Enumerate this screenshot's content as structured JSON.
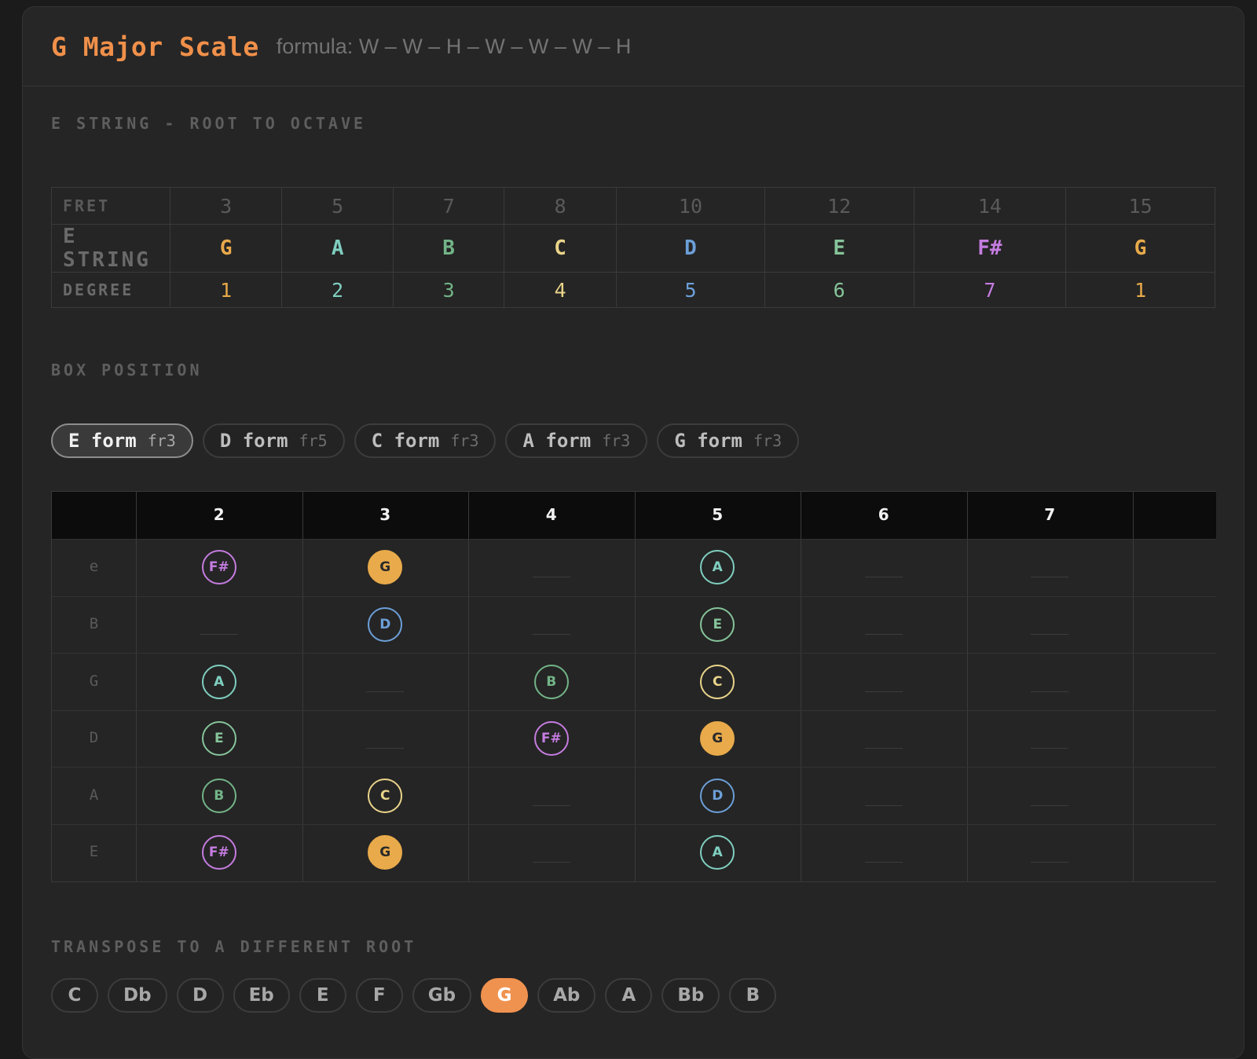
{
  "header": {
    "title": "G Major Scale",
    "formula": "formula: W – W – H – W – W – W – H"
  },
  "colors": {
    "root": "#e8aa4a",
    "second": "#7fcfc0",
    "third": "#72b487",
    "fourth": "#e9d48a",
    "fifth": "#6c9fd8",
    "sixth": "#86c49a",
    "seventh": "#c57ce0",
    "accent": "#f0924f"
  },
  "estring_section": {
    "label": "E STRING - ROOT TO OCTAVE",
    "row_labels": {
      "fret": "FRET",
      "note": "E STRING",
      "degree": "DEGREE"
    },
    "columns": [
      {
        "fret": "3",
        "note": "G",
        "degree": "1",
        "color": "#e8aa4a"
      },
      {
        "fret": "5",
        "note": "A",
        "degree": "2",
        "color": "#7fcfc0"
      },
      {
        "fret": "7",
        "note": "B",
        "degree": "3",
        "color": "#72b487"
      },
      {
        "fret": "8",
        "note": "C",
        "degree": "4",
        "color": "#e9d48a"
      },
      {
        "fret": "10",
        "note": "D",
        "degree": "5",
        "color": "#6c9fd8"
      },
      {
        "fret": "12",
        "note": "E",
        "degree": "6",
        "color": "#86c49a"
      },
      {
        "fret": "14",
        "note": "F#",
        "degree": "7",
        "color": "#c57ce0"
      },
      {
        "fret": "15",
        "note": "G",
        "degree": "1",
        "color": "#e8aa4a"
      }
    ]
  },
  "box_section": {
    "label": "BOX POSITION",
    "forms": [
      {
        "name": "E form",
        "fret": "fr3",
        "active": true
      },
      {
        "name": "D form",
        "fret": "fr5",
        "active": false
      },
      {
        "name": "C form",
        "fret": "fr3",
        "active": false
      },
      {
        "name": "A form",
        "fret": "fr3",
        "active": false
      },
      {
        "name": "G form",
        "fret": "fr3",
        "active": false
      }
    ],
    "frets": [
      "2",
      "3",
      "4",
      "5",
      "6",
      "7"
    ],
    "strings": [
      {
        "name": "e",
        "notes": [
          {
            "fret": "2",
            "note": "F#",
            "color": "#c57ce0",
            "root": false
          },
          {
            "fret": "3",
            "note": "G",
            "color": "#e8aa4a",
            "root": true
          },
          {
            "fret": "5",
            "note": "A",
            "color": "#7fcfc0",
            "root": false
          }
        ]
      },
      {
        "name": "B",
        "notes": [
          {
            "fret": "3",
            "note": "D",
            "color": "#6c9fd8",
            "root": false
          },
          {
            "fret": "5",
            "note": "E",
            "color": "#86c49a",
            "root": false
          }
        ]
      },
      {
        "name": "G",
        "notes": [
          {
            "fret": "2",
            "note": "A",
            "color": "#7fcfc0",
            "root": false
          },
          {
            "fret": "4",
            "note": "B",
            "color": "#72b487",
            "root": false
          },
          {
            "fret": "5",
            "note": "C",
            "color": "#e9d48a",
            "root": false
          }
        ]
      },
      {
        "name": "D",
        "notes": [
          {
            "fret": "2",
            "note": "E",
            "color": "#86c49a",
            "root": false
          },
          {
            "fret": "4",
            "note": "F#",
            "color": "#c57ce0",
            "root": false
          },
          {
            "fret": "5",
            "note": "G",
            "color": "#e8aa4a",
            "root": true
          }
        ]
      },
      {
        "name": "A",
        "notes": [
          {
            "fret": "2",
            "note": "B",
            "color": "#72b487",
            "root": false
          },
          {
            "fret": "3",
            "note": "C",
            "color": "#e9d48a",
            "root": false
          },
          {
            "fret": "5",
            "note": "D",
            "color": "#6c9fd8",
            "root": false
          }
        ]
      },
      {
        "name": "E",
        "notes": [
          {
            "fret": "2",
            "note": "F#",
            "color": "#c57ce0",
            "root": false
          },
          {
            "fret": "3",
            "note": "G",
            "color": "#e8aa4a",
            "root": true
          },
          {
            "fret": "5",
            "note": "A",
            "color": "#7fcfc0",
            "root": false
          }
        ]
      }
    ]
  },
  "transpose_section": {
    "label": "TRANSPOSE TO A DIFFERENT ROOT",
    "keys": [
      {
        "name": "C",
        "active": false
      },
      {
        "name": "Db",
        "active": false
      },
      {
        "name": "D",
        "active": false
      },
      {
        "name": "Eb",
        "active": false
      },
      {
        "name": "E",
        "active": false
      },
      {
        "name": "F",
        "active": false
      },
      {
        "name": "Gb",
        "active": false
      },
      {
        "name": "G",
        "active": true
      },
      {
        "name": "Ab",
        "active": false
      },
      {
        "name": "A",
        "active": false
      },
      {
        "name": "Bb",
        "active": false
      },
      {
        "name": "B",
        "active": false
      }
    ]
  }
}
